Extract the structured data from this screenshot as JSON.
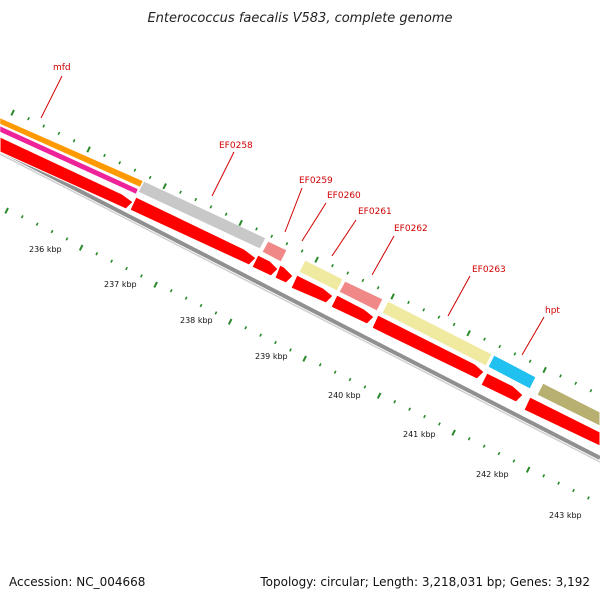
{
  "title": "Enterococcus faecalis V583, complete genome",
  "footer": {
    "accession": "Accession: NC_004668",
    "summary": "Topology: circular; Length: 3,218,031 bp; Genes: 3,192"
  },
  "colors": {
    "gene_label": "#d00000",
    "cds_arrow": "#ff0000",
    "backbone": "#808080",
    "ticks": "#2a8a2a",
    "orange": "#ff9900",
    "magenta": "#ee2299",
    "grey": "#c8c8c8",
    "pink": "#f08080",
    "pale_yellow": "#f0eaa0",
    "cyan": "#20c0f0",
    "olive": "#b8b070"
  },
  "gene_labels": [
    {
      "text": "mfd"
    },
    {
      "text": "EF0258"
    },
    {
      "text": "EF0259"
    },
    {
      "text": "EF0260"
    },
    {
      "text": "EF0261"
    },
    {
      "text": "EF0262"
    },
    {
      "text": "EF0263"
    },
    {
      "text": "hpt"
    }
  ],
  "scale_labels": [
    {
      "text": "236 kbp"
    },
    {
      "text": "237 kbp"
    },
    {
      "text": "238 kbp"
    },
    {
      "text": "239 kbp"
    },
    {
      "text": "240 kbp"
    },
    {
      "text": "241 kbp"
    },
    {
      "text": "242 kbp"
    },
    {
      "text": "243 kbp"
    }
  ]
}
